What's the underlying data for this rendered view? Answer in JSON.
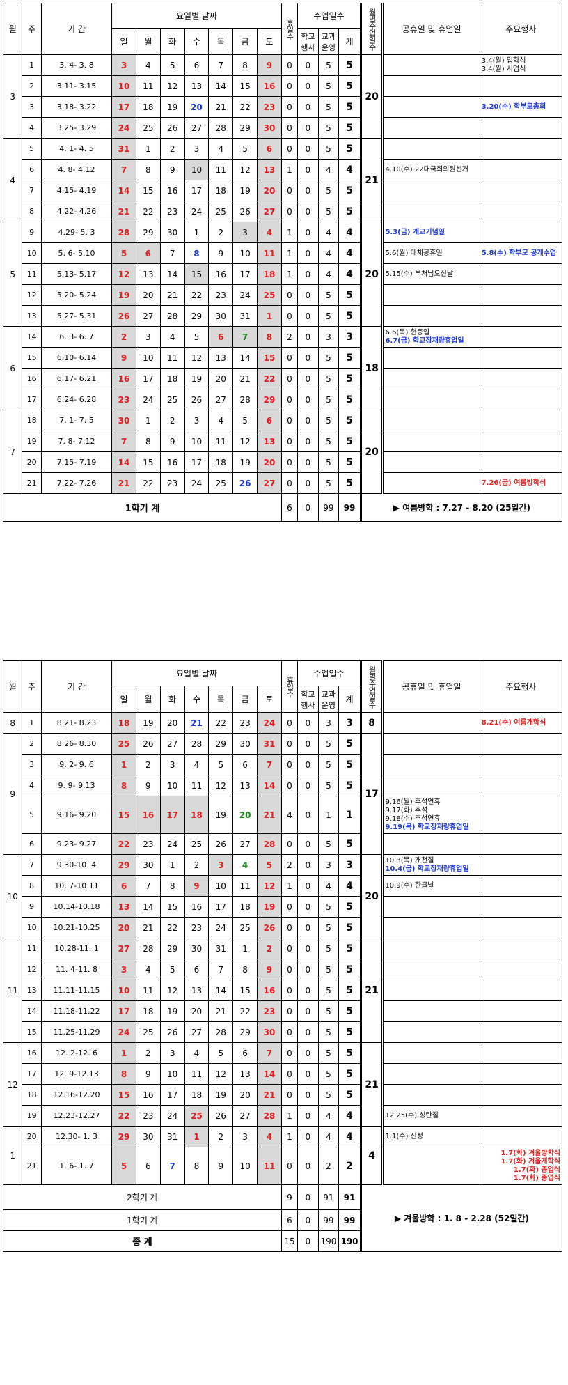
{
  "headers": {
    "month": "월",
    "week": "주",
    "period": "기 간",
    "weekday_dates": "요일별 날짜",
    "days": [
      "일",
      "월",
      "화",
      "수",
      "목",
      "금",
      "토"
    ],
    "holidays": "휴일수",
    "class_days": "수업일수",
    "school_event": "학교행사",
    "subject": "교과운영",
    "total": "계",
    "month_class_days": "월별수업일수",
    "public_holidays": "공휴일 및 휴업일",
    "main_events": "주요행사"
  },
  "semester1": {
    "rows": [
      {
        "m": "3",
        "w": "1",
        "p": "3. 4- 3. 8",
        "d": [
          "3",
          "4",
          "5",
          "6",
          "7",
          "8",
          "9"
        ],
        "h": "0",
        "s": "0",
        "c": "5",
        "t": "5",
        "mt": "20",
        "hol": "",
        "ev": "3.4(월) 입학식\n3.4(월) 시업식"
      },
      {
        "m": "",
        "w": "2",
        "p": "3.11- 3.15",
        "d": [
          "10",
          "11",
          "12",
          "13",
          "14",
          "15",
          "16"
        ],
        "h": "0",
        "s": "0",
        "c": "5",
        "t": "5",
        "mt": "",
        "hol": "",
        "ev": ""
      },
      {
        "m": "",
        "w": "3",
        "p": "3.18- 3.22",
        "d": [
          "17",
          "18",
          "19",
          "20",
          "21",
          "22",
          "23"
        ],
        "h": "0",
        "s": "0",
        "c": "5",
        "t": "5",
        "mt": "",
        "hol": "",
        "ev": "3.20(수) 학부모총회"
      },
      {
        "m": "",
        "w": "4",
        "p": "3.25- 3.29",
        "d": [
          "24",
          "25",
          "26",
          "27",
          "28",
          "29",
          "30"
        ],
        "h": "0",
        "s": "0",
        "c": "5",
        "t": "5",
        "mt": "",
        "hol": "",
        "ev": ""
      },
      {
        "m": "4",
        "w": "5",
        "p": "4. 1- 4. 5",
        "d": [
          "31",
          "1",
          "2",
          "3",
          "4",
          "5",
          "6"
        ],
        "h": "0",
        "s": "0",
        "c": "5",
        "t": "5",
        "mt": "21",
        "hol": "",
        "ev": ""
      },
      {
        "m": "",
        "w": "6",
        "p": "4. 8- 4.12",
        "d": [
          "7",
          "8",
          "9",
          "10",
          "11",
          "12",
          "13"
        ],
        "h": "1",
        "s": "0",
        "c": "4",
        "t": "4",
        "mt": "",
        "hol": "4.10(수) 22대국회의원선거",
        "ev": ""
      },
      {
        "m": "",
        "w": "7",
        "p": "4.15- 4.19",
        "d": [
          "14",
          "15",
          "16",
          "17",
          "18",
          "19",
          "20"
        ],
        "h": "0",
        "s": "0",
        "c": "5",
        "t": "5",
        "mt": "",
        "hol": "",
        "ev": ""
      },
      {
        "m": "",
        "w": "8",
        "p": "4.22- 4.26",
        "d": [
          "21",
          "22",
          "23",
          "24",
          "25",
          "26",
          "27"
        ],
        "h": "0",
        "s": "0",
        "c": "5",
        "t": "5",
        "mt": "",
        "hol": "",
        "ev": ""
      },
      {
        "m": "5",
        "w": "9",
        "p": "4.29- 5. 3",
        "d": [
          "28",
          "29",
          "30",
          "1",
          "2",
          "3",
          "4"
        ],
        "h": "1",
        "s": "0",
        "c": "4",
        "t": "4",
        "mt": "20",
        "hol": "5.3(금) 개교기념일",
        "ev": ""
      },
      {
        "m": "",
        "w": "10",
        "p": "5. 6- 5.10",
        "d": [
          "5",
          "6",
          "7",
          "8",
          "9",
          "10",
          "11"
        ],
        "h": "1",
        "s": "0",
        "c": "4",
        "t": "4",
        "mt": "",
        "hol": "5.6(월) 대체공휴일",
        "ev": "5.8(수) 학부모 공개수업"
      },
      {
        "m": "",
        "w": "11",
        "p": "5.13- 5.17",
        "d": [
          "12",
          "13",
          "14",
          "15",
          "16",
          "17",
          "18"
        ],
        "h": "1",
        "s": "0",
        "c": "4",
        "t": "4",
        "mt": "",
        "hol": "5.15(수) 부처님오신날",
        "ev": ""
      },
      {
        "m": "",
        "w": "12",
        "p": "5.20- 5.24",
        "d": [
          "19",
          "20",
          "21",
          "22",
          "23",
          "24",
          "25"
        ],
        "h": "0",
        "s": "0",
        "c": "5",
        "t": "5",
        "mt": "",
        "hol": "",
        "ev": ""
      },
      {
        "m": "",
        "w": "13",
        "p": "5.27- 5.31",
        "d": [
          "26",
          "27",
          "28",
          "29",
          "30",
          "31",
          "1"
        ],
        "h": "0",
        "s": "0",
        "c": "5",
        "t": "5",
        "mt": "",
        "hol": "",
        "ev": ""
      },
      {
        "m": "6",
        "w": "14",
        "p": "6. 3- 6. 7",
        "d": [
          "2",
          "3",
          "4",
          "5",
          "6",
          "7",
          "8"
        ],
        "h": "2",
        "s": "0",
        "c": "3",
        "t": "3",
        "mt": "18",
        "hol": "6.6(목) 현충일\n6.7(금) 학교장재량휴업일",
        "ev": ""
      },
      {
        "m": "",
        "w": "15",
        "p": "6.10- 6.14",
        "d": [
          "9",
          "10",
          "11",
          "12",
          "13",
          "14",
          "15"
        ],
        "h": "0",
        "s": "0",
        "c": "5",
        "t": "5",
        "mt": "",
        "hol": "",
        "ev": ""
      },
      {
        "m": "",
        "w": "16",
        "p": "6.17- 6.21",
        "d": [
          "16",
          "17",
          "18",
          "19",
          "20",
          "21",
          "22"
        ],
        "h": "0",
        "s": "0",
        "c": "5",
        "t": "5",
        "mt": "",
        "hol": "",
        "ev": ""
      },
      {
        "m": "",
        "w": "17",
        "p": "6.24- 6.28",
        "d": [
          "23",
          "24",
          "25",
          "26",
          "27",
          "28",
          "29"
        ],
        "h": "0",
        "s": "0",
        "c": "5",
        "t": "5",
        "mt": "",
        "hol": "",
        "ev": ""
      },
      {
        "m": "7",
        "w": "18",
        "p": "7. 1- 7. 5",
        "d": [
          "30",
          "1",
          "2",
          "3",
          "4",
          "5",
          "6"
        ],
        "h": "0",
        "s": "0",
        "c": "5",
        "t": "5",
        "mt": "20",
        "hol": "",
        "ev": ""
      },
      {
        "m": "",
        "w": "19",
        "p": "7. 8- 7.12",
        "d": [
          "7",
          "8",
          "9",
          "10",
          "11",
          "12",
          "13"
        ],
        "h": "0",
        "s": "0",
        "c": "5",
        "t": "5",
        "mt": "",
        "hol": "",
        "ev": ""
      },
      {
        "m": "",
        "w": "20",
        "p": "7.15- 7.19",
        "d": [
          "14",
          "15",
          "16",
          "17",
          "18",
          "19",
          "20"
        ],
        "h": "0",
        "s": "0",
        "c": "5",
        "t": "5",
        "mt": "",
        "hol": "",
        "ev": ""
      },
      {
        "m": "",
        "w": "21",
        "p": "7.22- 7.26",
        "d": [
          "21",
          "22",
          "23",
          "24",
          "25",
          "26",
          "27"
        ],
        "h": "0",
        "s": "0",
        "c": "5",
        "t": "5",
        "mt": "",
        "hol": "",
        "ev": "7.26(금) 여름방학식"
      }
    ],
    "total_label": "1학기 계",
    "total": {
      "h": "6",
      "s": "0",
      "c": "99",
      "t": "99"
    },
    "break_note": "▶ 여름방학 : 7.27 - 8.20 (25일간)"
  },
  "semester2": {
    "rows": [
      {
        "m": "8",
        "w": "1",
        "p": "8.21- 8.23",
        "d": [
          "18",
          "19",
          "20",
          "21",
          "22",
          "23",
          "24"
        ],
        "h": "0",
        "s": "0",
        "c": "3",
        "t": "3",
        "mt": "8",
        "hol": "",
        "ev": "8.21(수) 여름개학식"
      },
      {
        "m": "9",
        "w": "2",
        "p": "8.26- 8.30",
        "d": [
          "25",
          "26",
          "27",
          "28",
          "29",
          "30",
          "31"
        ],
        "h": "0",
        "s": "0",
        "c": "5",
        "t": "5",
        "mt": "17",
        "hol": "",
        "ev": ""
      },
      {
        "m": "",
        "w": "3",
        "p": "9. 2- 9. 6",
        "d": [
          "1",
          "2",
          "3",
          "4",
          "5",
          "6",
          "7"
        ],
        "h": "0",
        "s": "0",
        "c": "5",
        "t": "5",
        "mt": "",
        "hol": "",
        "ev": ""
      },
      {
        "m": "",
        "w": "4",
        "p": "9. 9- 9.13",
        "d": [
          "8",
          "9",
          "10",
          "11",
          "12",
          "13",
          "14"
        ],
        "h": "0",
        "s": "0",
        "c": "5",
        "t": "5",
        "mt": "",
        "hol": "",
        "ev": ""
      },
      {
        "m": "",
        "w": "5",
        "p": "9.16- 9.20",
        "d": [
          "15",
          "16",
          "17",
          "18",
          "19",
          "20",
          "21"
        ],
        "h": "4",
        "s": "0",
        "c": "1",
        "t": "1",
        "mt": "",
        "hol": "9.16(월) 추석연휴\n9.17(화) 추석\n9.18(수) 추석연휴\n9.19(목) 학교장재량휴업일",
        "ev": ""
      },
      {
        "m": "",
        "w": "6",
        "p": "9.23- 9.27",
        "d": [
          "22",
          "23",
          "24",
          "25",
          "26",
          "27",
          "28"
        ],
        "h": "0",
        "s": "0",
        "c": "5",
        "t": "5",
        "mt": "",
        "hol": "",
        "ev": ""
      },
      {
        "m": "10",
        "w": "7",
        "p": "9.30-10. 4",
        "d": [
          "29",
          "30",
          "1",
          "2",
          "3",
          "4",
          "5"
        ],
        "h": "2",
        "s": "0",
        "c": "3",
        "t": "3",
        "mt": "20",
        "hol": "10.3(목) 개천절\n10.4(금) 학교장재량휴업일",
        "ev": ""
      },
      {
        "m": "",
        "w": "8",
        "p": "10. 7-10.11",
        "d": [
          "6",
          "7",
          "8",
          "9",
          "10",
          "11",
          "12"
        ],
        "h": "1",
        "s": "0",
        "c": "4",
        "t": "4",
        "mt": "",
        "hol": "10.9(수) 한글날",
        "ev": ""
      },
      {
        "m": "",
        "w": "9",
        "p": "10.14-10.18",
        "d": [
          "13",
          "14",
          "15",
          "16",
          "17",
          "18",
          "19"
        ],
        "h": "0",
        "s": "0",
        "c": "5",
        "t": "5",
        "mt": "",
        "hol": "",
        "ev": ""
      },
      {
        "m": "",
        "w": "10",
        "p": "10.21-10.25",
        "d": [
          "20",
          "21",
          "22",
          "23",
          "24",
          "25",
          "26"
        ],
        "h": "0",
        "s": "0",
        "c": "5",
        "t": "5",
        "mt": "",
        "hol": "",
        "ev": ""
      },
      {
        "m": "11",
        "w": "11",
        "p": "10.28-11. 1",
        "d": [
          "27",
          "28",
          "29",
          "30",
          "31",
          "1",
          "2"
        ],
        "h": "0",
        "s": "0",
        "c": "5",
        "t": "5",
        "mt": "21",
        "hol": "",
        "ev": ""
      },
      {
        "m": "",
        "w": "12",
        "p": "11. 4-11. 8",
        "d": [
          "3",
          "4",
          "5",
          "6",
          "7",
          "8",
          "9"
        ],
        "h": "0",
        "s": "0",
        "c": "5",
        "t": "5",
        "mt": "",
        "hol": "",
        "ev": ""
      },
      {
        "m": "",
        "w": "13",
        "p": "11.11-11.15",
        "d": [
          "10",
          "11",
          "12",
          "13",
          "14",
          "15",
          "16"
        ],
        "h": "0",
        "s": "0",
        "c": "5",
        "t": "5",
        "mt": "",
        "hol": "",
        "ev": ""
      },
      {
        "m": "",
        "w": "14",
        "p": "11.18-11.22",
        "d": [
          "17",
          "18",
          "19",
          "20",
          "21",
          "22",
          "23"
        ],
        "h": "0",
        "s": "0",
        "c": "5",
        "t": "5",
        "mt": "",
        "hol": "",
        "ev": ""
      },
      {
        "m": "",
        "w": "15",
        "p": "11.25-11.29",
        "d": [
          "24",
          "25",
          "26",
          "27",
          "28",
          "29",
          "30"
        ],
        "h": "0",
        "s": "0",
        "c": "5",
        "t": "5",
        "mt": "",
        "hol": "",
        "ev": ""
      },
      {
        "m": "12",
        "w": "16",
        "p": "12. 2-12. 6",
        "d": [
          "1",
          "2",
          "3",
          "4",
          "5",
          "6",
          "7"
        ],
        "h": "0",
        "s": "0",
        "c": "5",
        "t": "5",
        "mt": "21",
        "hol": "",
        "ev": ""
      },
      {
        "m": "",
        "w": "17",
        "p": "12. 9-12.13",
        "d": [
          "8",
          "9",
          "10",
          "11",
          "12",
          "13",
          "14"
        ],
        "h": "0",
        "s": "0",
        "c": "5",
        "t": "5",
        "mt": "",
        "hol": "",
        "ev": ""
      },
      {
        "m": "",
        "w": "18",
        "p": "12.16-12.20",
        "d": [
          "15",
          "16",
          "17",
          "18",
          "19",
          "20",
          "21"
        ],
        "h": "0",
        "s": "0",
        "c": "5",
        "t": "5",
        "mt": "",
        "hol": "",
        "ev": ""
      },
      {
        "m": "",
        "w": "19",
        "p": "12.23-12.27",
        "d": [
          "22",
          "23",
          "24",
          "25",
          "26",
          "27",
          "28"
        ],
        "h": "1",
        "s": "0",
        "c": "4",
        "t": "4",
        "mt": "",
        "hol": "12.25(수) 성탄절",
        "ev": ""
      },
      {
        "m": "1",
        "w": "20",
        "p": "12.30- 1. 3",
        "d": [
          "29",
          "30",
          "31",
          "1",
          "2",
          "3",
          "4"
        ],
        "h": "1",
        "s": "0",
        "c": "4",
        "t": "4",
        "mt": "4",
        "hol": "1.1(수) 신정",
        "ev": ""
      },
      {
        "m": "",
        "w": "21",
        "p": "1. 6- 1. 7",
        "d": [
          "5",
          "6",
          "7",
          "8",
          "9",
          "10",
          "11"
        ],
        "h": "0",
        "s": "0",
        "c": "2",
        "t": "2",
        "mt": "",
        "hol": "",
        "ev": "1.7(화) 겨울방학식\n1.7(화) 겨울개학식\n1.7(화) 종업식\n1.7(화) 종업식"
      }
    ],
    "total2_label": "2학기 계",
    "total2": {
      "h": "9",
      "s": "0",
      "c": "91",
      "t": "91"
    },
    "total1_label": "1학기 계",
    "total1": {
      "h": "6",
      "s": "0",
      "c": "99",
      "t": "99"
    },
    "grand_label": "종      계",
    "grand": {
      "h": "15",
      "s": "0",
      "c": "190",
      "t": "190"
    },
    "break_note": "▶ 겨울방학 : 1. 8 - 2.28 (52일간)"
  },
  "colors": {
    "red": "#e02020",
    "blue": "#1a36d6",
    "green": "#1b8a1b",
    "shade": "#d9d9d9"
  }
}
